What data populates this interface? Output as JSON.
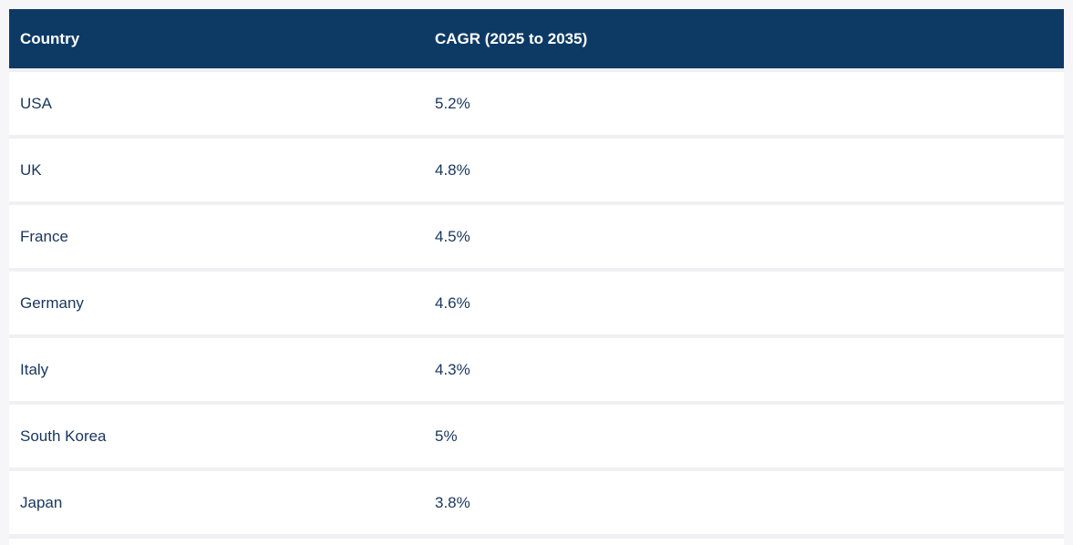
{
  "colors": {
    "header_bg": "#0d3a64",
    "header_text": "#ffffff",
    "row_text": "#17365f",
    "row_bg": "#ffffff",
    "separator": "#f0eff2",
    "page_bg": "#f6f6f8"
  },
  "table": {
    "columns": [
      "Country",
      "CAGR (2025 to 2035)"
    ],
    "rows": [
      {
        "country": "USA",
        "cagr": "5.2%"
      },
      {
        "country": "UK",
        "cagr": "4.8%"
      },
      {
        "country": "France",
        "cagr": "4.5%"
      },
      {
        "country": "Germany",
        "cagr": "4.6%"
      },
      {
        "country": "Italy",
        "cagr": "4.3%"
      },
      {
        "country": "South Korea",
        "cagr": "5%"
      },
      {
        "country": "Japan",
        "cagr": "3.8%"
      }
    ]
  },
  "chart_data": {
    "type": "table",
    "columns": [
      "Country",
      "CAGR (2025 to 2035)"
    ],
    "categories": [
      "USA",
      "UK",
      "France",
      "Germany",
      "Italy",
      "South Korea",
      "Japan"
    ],
    "values": [
      5.2,
      4.8,
      4.5,
      4.6,
      4.3,
      5.0,
      3.8
    ],
    "unit": "%"
  }
}
